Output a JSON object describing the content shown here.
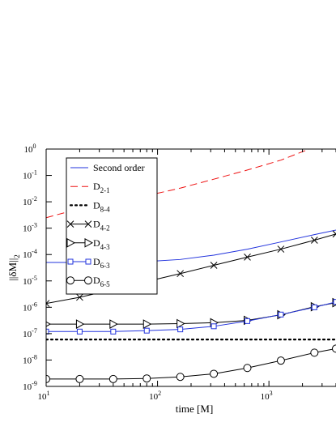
{
  "chart_data": {
    "type": "line",
    "xlabel": "time [M]",
    "ylabel_main": "||δM||",
    "ylabel_sub": "2",
    "x_scale": "log",
    "y_scale": "log",
    "xlim": [
      10,
      4000
    ],
    "ylim": [
      1e-09,
      1
    ],
    "x_ticks": [
      {
        "value": 10,
        "base": "10",
        "exp": "1"
      },
      {
        "value": 100,
        "base": "10",
        "exp": "2"
      },
      {
        "value": 1000,
        "base": "10",
        "exp": "3"
      }
    ],
    "y_ticks": [
      {
        "value": 1,
        "base": "10",
        "exp": "0"
      },
      {
        "value": 0.1,
        "base": "10",
        "exp": "-1"
      },
      {
        "value": 0.01,
        "base": "10",
        "exp": "-2"
      },
      {
        "value": 0.001,
        "base": "10",
        "exp": "-3"
      },
      {
        "value": 0.0001,
        "base": "10",
        "exp": "-4"
      },
      {
        "value": 1e-05,
        "base": "10",
        "exp": "-5"
      },
      {
        "value": 1e-06,
        "base": "10",
        "exp": "-6"
      },
      {
        "value": 1e-07,
        "base": "10",
        "exp": "-7"
      },
      {
        "value": 1e-08,
        "base": "10",
        "exp": "-8"
      },
      {
        "value": 1e-09,
        "base": "10",
        "exp": "-9"
      }
    ],
    "legend_position": "top-left",
    "series": [
      {
        "name": "Second order",
        "name_main": "Second order",
        "name_sub": "",
        "color": "#2233dd",
        "style": "solid",
        "marker": "none",
        "x": [
          10,
          20,
          40,
          80,
          160,
          320,
          640,
          1280,
          2560,
          4000
        ],
        "y": [
          5e-05,
          5e-05,
          5e-05,
          5.4e-05,
          6.5e-05,
          9.5e-05,
          0.00016,
          0.0003,
          0.00057,
          0.00085
        ]
      },
      {
        "name": "D2-1",
        "name_main": "D",
        "name_sub": "2-1",
        "color": "#ee1111",
        "style": "dashed",
        "marker": "none",
        "x": [
          10,
          20,
          40,
          80,
          160,
          320,
          640,
          1280,
          2300
        ],
        "y": [
          0.0025,
          0.0055,
          0.0095,
          0.017,
          0.033,
          0.072,
          0.16,
          0.38,
          1.0
        ]
      },
      {
        "name": "D8-4",
        "name_main": "D",
        "name_sub": "8-4",
        "color": "#000000",
        "style": "dotted",
        "marker": "none",
        "x": [
          10,
          4000
        ],
        "y": [
          6e-08,
          6e-08
        ]
      },
      {
        "name": "D4-2",
        "name_main": "D",
        "name_sub": "4-2",
        "color": "#000000",
        "style": "solid",
        "marker": "x",
        "x": [
          10,
          20,
          40,
          80,
          160,
          320,
          640,
          1280,
          2560,
          4000
        ],
        "y": [
          1.4e-06,
          2.4e-06,
          4.7e-06,
          9.5e-06,
          1.9e-05,
          3.9e-05,
          8e-05,
          0.00016,
          0.00035,
          0.0006
        ]
      },
      {
        "name": "D4-3",
        "name_main": "D",
        "name_sub": "4-3",
        "color": "#000000",
        "style": "solid",
        "marker": "triangle-right",
        "x": [
          10,
          20,
          40,
          80,
          160,
          320,
          640,
          1280,
          2560,
          4000
        ],
        "y": [
          2.3e-07,
          2.3e-07,
          2.3e-07,
          2.3e-07,
          2.4e-07,
          2.6e-07,
          3.2e-07,
          5.2e-07,
          1.05e-06,
          1.5e-06
        ]
      },
      {
        "name": "D6-3",
        "name_main": "D",
        "name_sub": "6-3",
        "color": "#2233dd",
        "style": "solid",
        "marker": "square",
        "x": [
          10,
          20,
          40,
          80,
          160,
          320,
          640,
          1280,
          2560,
          4000
        ],
        "y": [
          1.2e-07,
          1.2e-07,
          1.2e-07,
          1.3e-07,
          1.45e-07,
          1.9e-07,
          3e-07,
          5.3e-07,
          1e-06,
          1.6e-06
        ]
      },
      {
        "name": "D6-5",
        "name_main": "D",
        "name_sub": "6-5",
        "color": "#000000",
        "style": "solid",
        "marker": "circle",
        "x": [
          10,
          20,
          40,
          80,
          160,
          320,
          640,
          1280,
          2560,
          4000
        ],
        "y": [
          1.9e-09,
          1.9e-09,
          1.9e-09,
          2e-09,
          2.3e-09,
          3e-09,
          5e-09,
          9.5e-09,
          1.9e-08,
          2.7e-08
        ]
      }
    ]
  }
}
